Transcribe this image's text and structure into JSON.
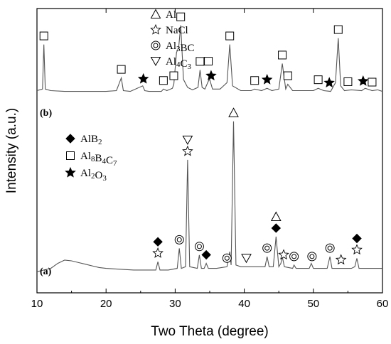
{
  "chart_data": {
    "type": "line",
    "xlabel": "Two Theta (degree)",
    "ylabel": "Intensity (a.u.)",
    "xlim": [
      10,
      60
    ],
    "xticks": [
      10,
      20,
      30,
      40,
      50,
      60
    ],
    "yticks_shown": false,
    "grid": false,
    "legend_position": "top-left",
    "series": [
      {
        "name": "(b)",
        "x": [
          10,
          10.8,
          11.0,
          11.2,
          12,
          14,
          16,
          18,
          20,
          21.5,
          22.2,
          22.5,
          23.5,
          25.3,
          25.6,
          26.2,
          28.0,
          28.3,
          28.8,
          29.6,
          29.8,
          30.2,
          30.5,
          30.8,
          31.2,
          31.8,
          32.5,
          33.3,
          33.6,
          33.9,
          34.3,
          34.8,
          35.0,
          35.4,
          36.5,
          37.5,
          37.9,
          38.3,
          39.5,
          41.0,
          41.5,
          42.5,
          43.3,
          44.0,
          45.0,
          45.5,
          46.0,
          46.3,
          47.0,
          48.5,
          50.0,
          50.7,
          51.5,
          52.5,
          53.2,
          53.6,
          53.95,
          54.5,
          55.5,
          57.0,
          57.5,
          58.5,
          59.3,
          60
        ],
        "y": [
          0.04,
          0.06,
          0.62,
          0.06,
          0.04,
          0.03,
          0.03,
          0.03,
          0.03,
          0.04,
          0.2,
          0.04,
          0.03,
          0.1,
          0.04,
          0.03,
          0.03,
          0.06,
          0.04,
          0.07,
          0.12,
          0.52,
          0.58,
          0.86,
          0.18,
          0.08,
          0.05,
          0.08,
          0.3,
          0.08,
          0.06,
          0.16,
          0.18,
          0.06,
          0.06,
          0.14,
          0.62,
          0.1,
          0.04,
          0.04,
          0.06,
          0.04,
          0.07,
          0.04,
          0.06,
          0.38,
          0.06,
          0.12,
          0.04,
          0.04,
          0.04,
          0.07,
          0.04,
          0.03,
          0.14,
          0.7,
          0.1,
          0.04,
          0.05,
          0.04,
          0.07,
          0.04,
          0.05,
          0.03
        ]
      },
      {
        "name": "(a)",
        "x": [
          10,
          11,
          12,
          13,
          14,
          15,
          16,
          17,
          18,
          19,
          20,
          22,
          24,
          26,
          27.2,
          27.5,
          27.8,
          29,
          30.3,
          30.6,
          30.9,
          31.5,
          31.8,
          32.1,
          33.2,
          33.5,
          33.8,
          34.2,
          34.5,
          34.8,
          36,
          37.5,
          37.9,
          38.1,
          38.45,
          38.8,
          39.5,
          41,
          43.0,
          43.3,
          43.6,
          44.2,
          44.6,
          45.0,
          45.3,
          45.5,
          45.8,
          47,
          47.2,
          47.5,
          49.4,
          49.7,
          50,
          52.0,
          52.4,
          52.7,
          54,
          55.5,
          56.0,
          56.3,
          56.6,
          58,
          60
        ],
        "y": [
          0.02,
          0.03,
          0.04,
          0.07,
          0.09,
          0.085,
          0.075,
          0.065,
          0.055,
          0.045,
          0.04,
          0.035,
          0.03,
          0.03,
          0.03,
          0.08,
          0.03,
          0.03,
          0.04,
          0.16,
          0.04,
          0.05,
          0.69,
          0.05,
          0.04,
          0.12,
          0.04,
          0.04,
          0.07,
          0.04,
          0.04,
          0.05,
          0.14,
          0.06,
          0.92,
          0.06,
          0.05,
          0.05,
          0.05,
          0.11,
          0.05,
          0.05,
          0.23,
          0.05,
          0.07,
          0.11,
          0.05,
          0.04,
          0.06,
          0.04,
          0.04,
          0.07,
          0.04,
          0.04,
          0.11,
          0.04,
          0.04,
          0.04,
          0.05,
          0.1,
          0.04,
          0.04,
          0.04
        ]
      }
    ],
    "legend": [
      {
        "marker": "triangle-up-open",
        "label": "Al"
      },
      {
        "marker": "star-open",
        "label": "NaCl"
      },
      {
        "marker": "double-circle",
        "label": "Al3BC"
      },
      {
        "marker": "triangle-down-open",
        "label": "Al4C3"
      },
      {
        "marker": "diamond-filled",
        "label": "AlB2"
      },
      {
        "marker": "square-open",
        "label": "Al8B4C7"
      },
      {
        "marker": "star-filled",
        "label": "Al2O3"
      }
    ],
    "annotations": [
      {
        "series": "(b)",
        "marker": "square-open",
        "x": [
          11.0,
          22.2,
          28.3,
          29.8,
          30.8,
          33.6,
          34.8,
          37.9,
          41.5,
          45.5,
          46.3,
          50.7,
          53.6,
          55.0,
          58.5
        ]
      },
      {
        "series": "(b)",
        "marker": "star-filled",
        "x": [
          25.4,
          35.2,
          43.3,
          52.3,
          57.2
        ]
      },
      {
        "series": "(a)",
        "marker": "diamond-filled",
        "x": [
          27.5,
          34.5,
          44.6,
          56.3
        ]
      },
      {
        "series": "(a)",
        "marker": "star-open",
        "x": [
          27.5,
          31.8,
          45.7,
          54.0,
          56.3
        ]
      },
      {
        "series": "(a)",
        "marker": "double-circle",
        "x": [
          30.6,
          33.5,
          37.5,
          43.3,
          47.2,
          49.8,
          52.4
        ]
      },
      {
        "series": "(a)",
        "marker": "triangle-down-open",
        "x": [
          31.8,
          40.3
        ]
      },
      {
        "series": "(a)",
        "marker": "triangle-up-open",
        "x": [
          38.45,
          44.6
        ]
      }
    ]
  }
}
